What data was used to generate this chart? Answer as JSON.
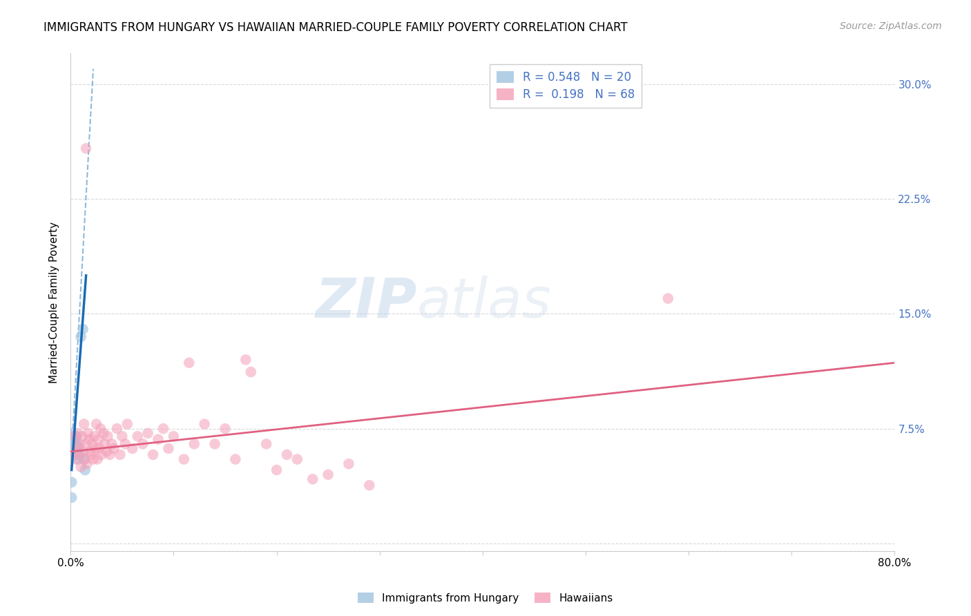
{
  "title": "IMMIGRANTS FROM HUNGARY VS HAWAIIAN MARRIED-COUPLE FAMILY POVERTY CORRELATION CHART",
  "source": "Source: ZipAtlas.com",
  "ylabel": "Married-Couple Family Poverty",
  "yticks": [
    0.0,
    0.075,
    0.15,
    0.225,
    0.3
  ],
  "ytick_labels": [
    "",
    "7.5%",
    "15.0%",
    "22.5%",
    "30.0%"
  ],
  "xlim": [
    0.0,
    0.8
  ],
  "ylim": [
    -0.005,
    0.32
  ],
  "legend_entries": [
    {
      "label": "R = 0.548   N = 20",
      "color": "#a8c8e8"
    },
    {
      "label": "R =  0.198   N = 68",
      "color": "#f4a0b8"
    }
  ],
  "watermark": "ZIPatlas",
  "hungary_scatter": [
    [
      0.001,
      0.072
    ],
    [
      0.002,
      0.067
    ],
    [
      0.003,
      0.063
    ],
    [
      0.003,
      0.06
    ],
    [
      0.004,
      0.068
    ],
    [
      0.004,
      0.062
    ],
    [
      0.005,
      0.065
    ],
    [
      0.005,
      0.058
    ],
    [
      0.006,
      0.07
    ],
    [
      0.006,
      0.06
    ],
    [
      0.007,
      0.064
    ],
    [
      0.007,
      0.055
    ],
    [
      0.008,
      0.062
    ],
    [
      0.009,
      0.058
    ],
    [
      0.01,
      0.135
    ],
    [
      0.012,
      0.14
    ],
    [
      0.013,
      0.055
    ],
    [
      0.014,
      0.048
    ],
    [
      0.001,
      0.04
    ],
    [
      0.001,
      0.03
    ]
  ],
  "hawaiian_scatter": [
    [
      0.003,
      0.06
    ],
    [
      0.004,
      0.07
    ],
    [
      0.005,
      0.055
    ],
    [
      0.006,
      0.063
    ],
    [
      0.007,
      0.072
    ],
    [
      0.008,
      0.058
    ],
    [
      0.009,
      0.065
    ],
    [
      0.01,
      0.05
    ],
    [
      0.011,
      0.07
    ],
    [
      0.012,
      0.06
    ],
    [
      0.013,
      0.078
    ],
    [
      0.014,
      0.055
    ],
    [
      0.015,
      0.065
    ],
    [
      0.016,
      0.052
    ],
    [
      0.017,
      0.072
    ],
    [
      0.018,
      0.068
    ],
    [
      0.019,
      0.06
    ],
    [
      0.02,
      0.058
    ],
    [
      0.021,
      0.065
    ],
    [
      0.022,
      0.055
    ],
    [
      0.023,
      0.07
    ],
    [
      0.024,
      0.062
    ],
    [
      0.025,
      0.078
    ],
    [
      0.026,
      0.055
    ],
    [
      0.027,
      0.068
    ],
    [
      0.028,
      0.062
    ],
    [
      0.029,
      0.075
    ],
    [
      0.03,
      0.058
    ],
    [
      0.032,
      0.072
    ],
    [
      0.033,
      0.065
    ],
    [
      0.035,
      0.06
    ],
    [
      0.036,
      0.07
    ],
    [
      0.038,
      0.058
    ],
    [
      0.04,
      0.065
    ],
    [
      0.042,
      0.062
    ],
    [
      0.045,
      0.075
    ],
    [
      0.048,
      0.058
    ],
    [
      0.05,
      0.07
    ],
    [
      0.053,
      0.065
    ],
    [
      0.055,
      0.078
    ],
    [
      0.06,
      0.062
    ],
    [
      0.065,
      0.07
    ],
    [
      0.07,
      0.065
    ],
    [
      0.075,
      0.072
    ],
    [
      0.08,
      0.058
    ],
    [
      0.085,
      0.068
    ],
    [
      0.09,
      0.075
    ],
    [
      0.095,
      0.062
    ],
    [
      0.1,
      0.07
    ],
    [
      0.11,
      0.055
    ],
    [
      0.115,
      0.118
    ],
    [
      0.12,
      0.065
    ],
    [
      0.13,
      0.078
    ],
    [
      0.14,
      0.065
    ],
    [
      0.15,
      0.075
    ],
    [
      0.16,
      0.055
    ],
    [
      0.17,
      0.12
    ],
    [
      0.175,
      0.112
    ],
    [
      0.19,
      0.065
    ],
    [
      0.2,
      0.048
    ],
    [
      0.21,
      0.058
    ],
    [
      0.22,
      0.055
    ],
    [
      0.235,
      0.042
    ],
    [
      0.25,
      0.045
    ],
    [
      0.27,
      0.052
    ],
    [
      0.29,
      0.038
    ],
    [
      0.58,
      0.16
    ],
    [
      0.015,
      0.258
    ]
  ],
  "hungary_line_solid": {
    "x": [
      0.001,
      0.015
    ],
    "y": [
      0.048,
      0.175
    ]
  },
  "hungary_line_dash": {
    "x": [
      0.001,
      0.022
    ],
    "y": [
      0.06,
      0.31
    ]
  },
  "hawaiian_line": {
    "x": [
      0.0,
      0.8
    ],
    "y": [
      0.06,
      0.118
    ]
  },
  "scatter_size": 90,
  "hungary_color": "#a0c4e0",
  "hawaiian_color": "#f4a0b8",
  "hungary_line_color": "#1a6bb5",
  "hawaiian_line_color": "#e06080",
  "hungary_dash_color": "#90b8d8",
  "background_color": "#ffffff",
  "grid_color": "#d8d8d8",
  "title_fontsize": 12,
  "source_fontsize": 10,
  "ylabel_fontsize": 11,
  "tick_fontsize": 11,
  "right_tick_color": "#4472c4"
}
